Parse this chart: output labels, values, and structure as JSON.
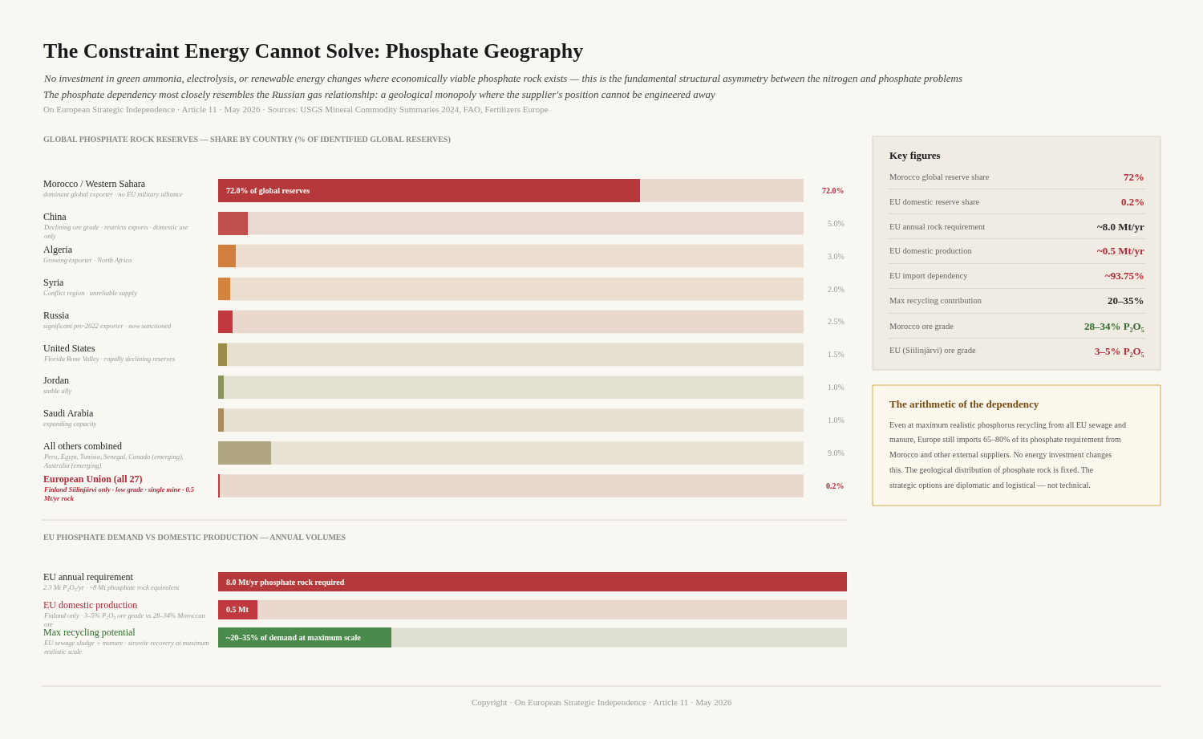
{
  "chart_data": [
    {
      "type": "other",
      "title": "The Constraint Energy Cannot Solve: Phosphate Geography",
      "subtitle": "No investment in green ammonia, electrolysis, or renewable energy changes where economically viable phosphate rock exists — this is the fundamental structural asymmetry between the nitrogen and phosphate problems\nThe phosphate dependency most closely resembles the Russian gas relationship: a geological monopoly where the supplier's position cannot be engineered away",
      "annotations": [
        "On European Strategic Independence · Article 11 · May 2026 · Sources: USGS Mineral Commodity Summaries 2024, FAO, Fertilizers Europe",
        "Copyright · On European Strategic Independence · Article 11 · May 2026"
      ]
    },
    {
      "type": "bar",
      "orientation": "horizontal",
      "title": "GLOBAL PHOSPHATE ROCK RESERVES — SHARE BY COUNTRY (% OF IDENTIFIED GLOBAL RESERVES)",
      "categories": [
        "Morocco / Western Sahara",
        "China",
        "Algeria",
        "Syria",
        "Russia",
        "United States",
        "Jordan",
        "Saudi Arabia",
        "All others combined",
        "European Union (all 27)"
      ],
      "values": [
        72.0,
        5.0,
        3.0,
        2.0,
        2.5,
        1.5,
        1.0,
        1.0,
        9.0,
        0.2
      ],
      "colors": [
        "#b5383a",
        "#c0504d",
        "#d07f3e",
        "#d4843f",
        "#c0393e",
        "#9a8c4b",
        "#88935d",
        "#a88c5e",
        "#b0a680",
        "#c0393e"
      ],
      "value_labels": [
        "72.0%",
        "5.0%",
        "3.0%",
        "2.0%",
        "2.5%",
        "1.5%",
        "1.0%",
        "1.0%",
        "9.0%",
        "0.2%"
      ],
      "xlim": [
        0,
        100
      ],
      "annotations": [
        "dominant global exporter · no EU military alliance",
        "Declining ore grade · restricts exports · domestic use only",
        "Growing exporter · North Africa",
        "Conflict region · unreliable supply",
        "significant pre-2022 exporter · now sanctioned",
        "Florida Bone Valley · rapidly declining reserves",
        "stable ally",
        "expanding capacity",
        "Peru, Egypt, Tunisia, Senegal, Canada (emerging), Australia (emerging)",
        "Finland Siilinjärvi only · low grade · single mine · 0.5 Mt/yr rock",
        {
          "text": "72.0% of global reserves",
          "x": 0,
          "y": "Morocco / Western Sahara"
        }
      ]
    },
    {
      "type": "bar",
      "orientation": "horizontal",
      "title": "EU PHOSPHATE DEMAND VS DOMESTIC PRODUCTION — ANNUAL VOLUMES",
      "categories": [
        "EU annual requirement",
        "EU domestic production",
        "Max recycling potential"
      ],
      "values": [
        8.0,
        0.5,
        2.2
      ],
      "colors": [
        "#b5383a",
        "#c0393e",
        "#4a8a4a"
      ],
      "value_labels": [
        "8.0 Mt/yr phosphate rock required",
        "0.5 Mt",
        null
      ],
      "xlim": [
        0,
        8
      ],
      "annotations": [
        "2.3 Mt P₂O₅/yr · ~8 Mt phosphate rock equivalent",
        "Finland only · 3–5% P₂O₅ ore grade vs 28–34% Moroccan ore",
        "EU sewage sludge + manure · struvite recovery at maximum realistic scale",
        {
          "text": "~20–35% of demand at maximum scale",
          "x": 0,
          "y": "Max recycling potential"
        }
      ]
    },
    {
      "type": "other",
      "title": "Key figures",
      "annotations": [
        "Morocco global reserve share",
        "72%",
        "EU domestic reserve share",
        "0.2%",
        "EU annual rock requirement",
        "~8.0 Mt/yr",
        "EU domestic production",
        "~0.5 Mt/yr",
        "EU import dependency",
        "~93.75%",
        "Max recycling contribution",
        "20–35%",
        "Morocco ore grade",
        "28–34% P₂O₅",
        "EU (Siilinjärvi) ore grade",
        "3–5% P₂O₅"
      ],
      "colors": [
        "#b02a37",
        "#b02a37",
        "#2a2a2a",
        "#b02a37",
        "#b02a37",
        "#2a2a2a",
        "#2f6b2f",
        "#b02a37"
      ]
    },
    {
      "type": "other",
      "title": "The arithmetic of the dependency",
      "annotations": [
        "Even at maximum realistic phosphorus recycling from all EU sewage and manure, Europe still imports 65–80% of its phosphate requirement from Morocco and other external suppliers. No energy investment changes this. The geological distribution of phosphate rock is fixed. The strategic options are diplomatic and logistical — not technical."
      ]
    }
  ]
}
